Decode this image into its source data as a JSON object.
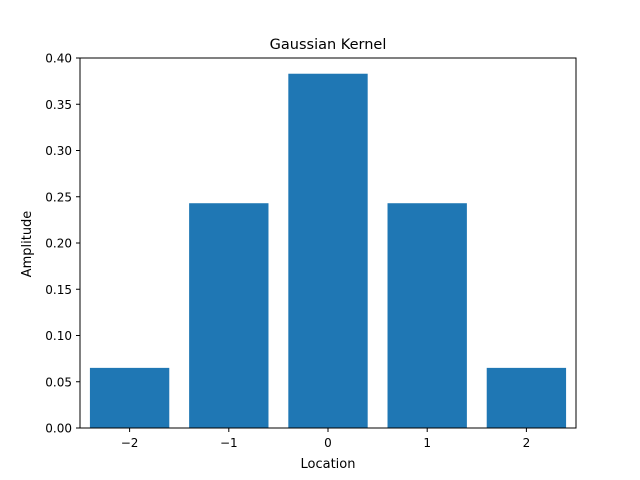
{
  "chart_data": {
    "type": "bar",
    "title": "Gaussian Kernel",
    "xlabel": "Location",
    "ylabel": "Amplitude",
    "categories": [
      "−2",
      "−1",
      "0",
      "1",
      "2"
    ],
    "x": [
      -2,
      -1,
      0,
      1,
      2
    ],
    "values": [
      0.065,
      0.243,
      0.383,
      0.243,
      0.065
    ],
    "xlim": [
      -2.5,
      2.5
    ],
    "ylim": [
      0,
      0.4
    ],
    "yticks": [
      "0.00",
      "0.05",
      "0.10",
      "0.15",
      "0.20",
      "0.25",
      "0.30",
      "0.35",
      "0.40"
    ],
    "bar_color": "#1f77b4",
    "grid": false,
    "legend": "none"
  }
}
